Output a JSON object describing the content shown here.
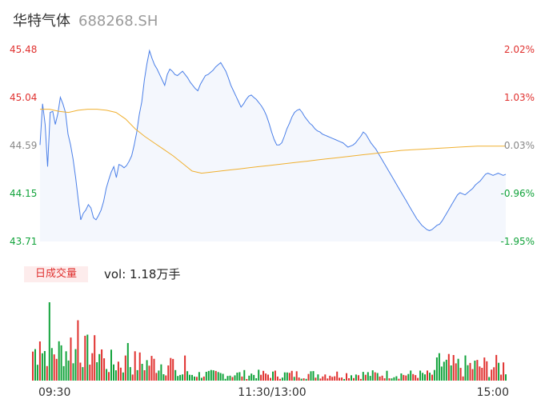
{
  "stock": {
    "name": "华特气体",
    "code": "688268.SH"
  },
  "colors": {
    "up": "#e0312f",
    "down": "#12a33b",
    "neutral": "#888888",
    "price_line": "#4a7fe8",
    "avg_line": "#f0b030",
    "area": "#f4f7fd"
  },
  "chart_data": [
    {
      "type": "line",
      "title": "",
      "y_ticks": [
        "45.48",
        "45.04",
        "44.59",
        "44.15",
        "43.71"
      ],
      "pct_ticks": [
        "2.02%",
        "1.03%",
        "0.03%",
        "-0.96%",
        "-1.95%"
      ],
      "ylim": [
        43.71,
        45.48
      ],
      "x_ticks": [
        "09:30",
        "11:30/13:00",
        "15:00"
      ],
      "series": [
        {
          "name": "",
          "values": [
            44.6,
            44.98,
            44.79,
            44.4,
            44.9,
            44.91,
            44.79,
            44.89,
            45.04,
            44.98,
            44.9,
            44.7,
            44.6,
            44.47,
            44.3,
            44.1,
            43.91,
            43.97,
            44.0,
            44.05,
            44.02,
            43.93,
            43.91,
            43.95,
            44.0,
            44.08,
            44.2,
            44.28,
            44.35,
            44.4,
            44.3,
            44.42,
            44.41,
            44.39,
            44.41,
            44.45,
            44.5,
            44.6,
            44.72,
            44.88,
            45.0,
            45.2,
            45.35,
            45.47,
            45.4,
            45.34,
            45.3,
            45.25,
            45.2,
            45.15,
            45.25,
            45.3,
            45.28,
            45.25,
            45.24,
            45.26,
            45.28,
            45.25,
            45.22,
            45.18,
            45.15,
            45.12,
            45.1,
            45.16,
            45.2,
            45.24,
            45.25,
            45.27,
            45.29,
            45.32,
            45.34,
            45.36,
            45.32,
            45.28,
            45.22,
            45.15,
            45.1,
            45.05,
            45.0,
            44.95,
            44.98,
            45.02,
            45.05,
            45.06,
            45.04,
            45.02,
            44.99,
            44.96,
            44.92,
            44.87,
            44.8,
            44.72,
            44.65,
            44.6,
            44.6,
            44.62,
            44.68,
            44.75,
            44.8,
            44.86,
            44.9,
            44.92,
            44.93,
            44.9,
            44.86,
            44.83,
            44.8,
            44.78,
            44.75,
            44.73,
            44.72,
            44.7,
            44.69,
            44.68,
            44.67,
            44.66,
            44.65,
            44.64,
            44.63,
            44.62,
            44.6,
            44.58,
            44.59,
            44.6,
            44.62,
            44.65,
            44.68,
            44.72,
            44.7,
            44.66,
            44.62,
            44.59,
            44.56,
            44.52,
            44.48,
            44.44,
            44.4,
            44.36,
            44.32,
            44.28,
            44.24,
            44.2,
            44.16,
            44.12,
            44.08,
            44.04,
            44.0,
            43.96,
            43.92,
            43.89,
            43.86,
            43.84,
            43.82,
            43.81,
            43.82,
            43.84,
            43.86,
            43.87,
            43.9,
            43.94,
            43.98,
            44.02,
            44.06,
            44.1,
            44.14,
            44.16,
            44.15,
            44.14,
            44.16,
            44.18,
            44.2,
            44.23,
            44.25,
            44.27,
            44.3,
            44.33,
            44.34,
            44.33,
            44.32,
            44.33,
            44.34,
            44.33,
            44.32,
            44.33
          ]
        },
        {
          "name": "",
          "values": [
            44.93,
            44.93,
            44.91,
            44.9,
            44.92,
            44.93,
            44.93,
            44.92,
            44.9,
            44.84,
            44.75,
            44.68,
            44.62,
            44.56,
            44.5,
            44.43,
            44.36,
            44.34,
            44.35,
            44.36,
            44.37,
            44.38,
            44.39,
            44.4,
            44.41,
            44.42,
            44.43,
            44.44,
            44.45,
            44.46,
            44.47,
            44.48,
            44.49,
            44.5,
            44.51,
            44.52,
            44.53,
            44.54,
            44.55,
            44.555,
            44.56,
            44.565,
            44.57,
            44.575,
            44.58,
            44.585,
            44.59,
            44.59,
            44.59,
            44.59
          ]
        }
      ],
      "price_x_range": [
        0,
        240
      ],
      "avg_x_range": [
        0,
        240
      ]
    },
    {
      "type": "bar",
      "title": "",
      "legend_label": "日成交量",
      "vol_label": "vol: 1.18万手"
    }
  ]
}
